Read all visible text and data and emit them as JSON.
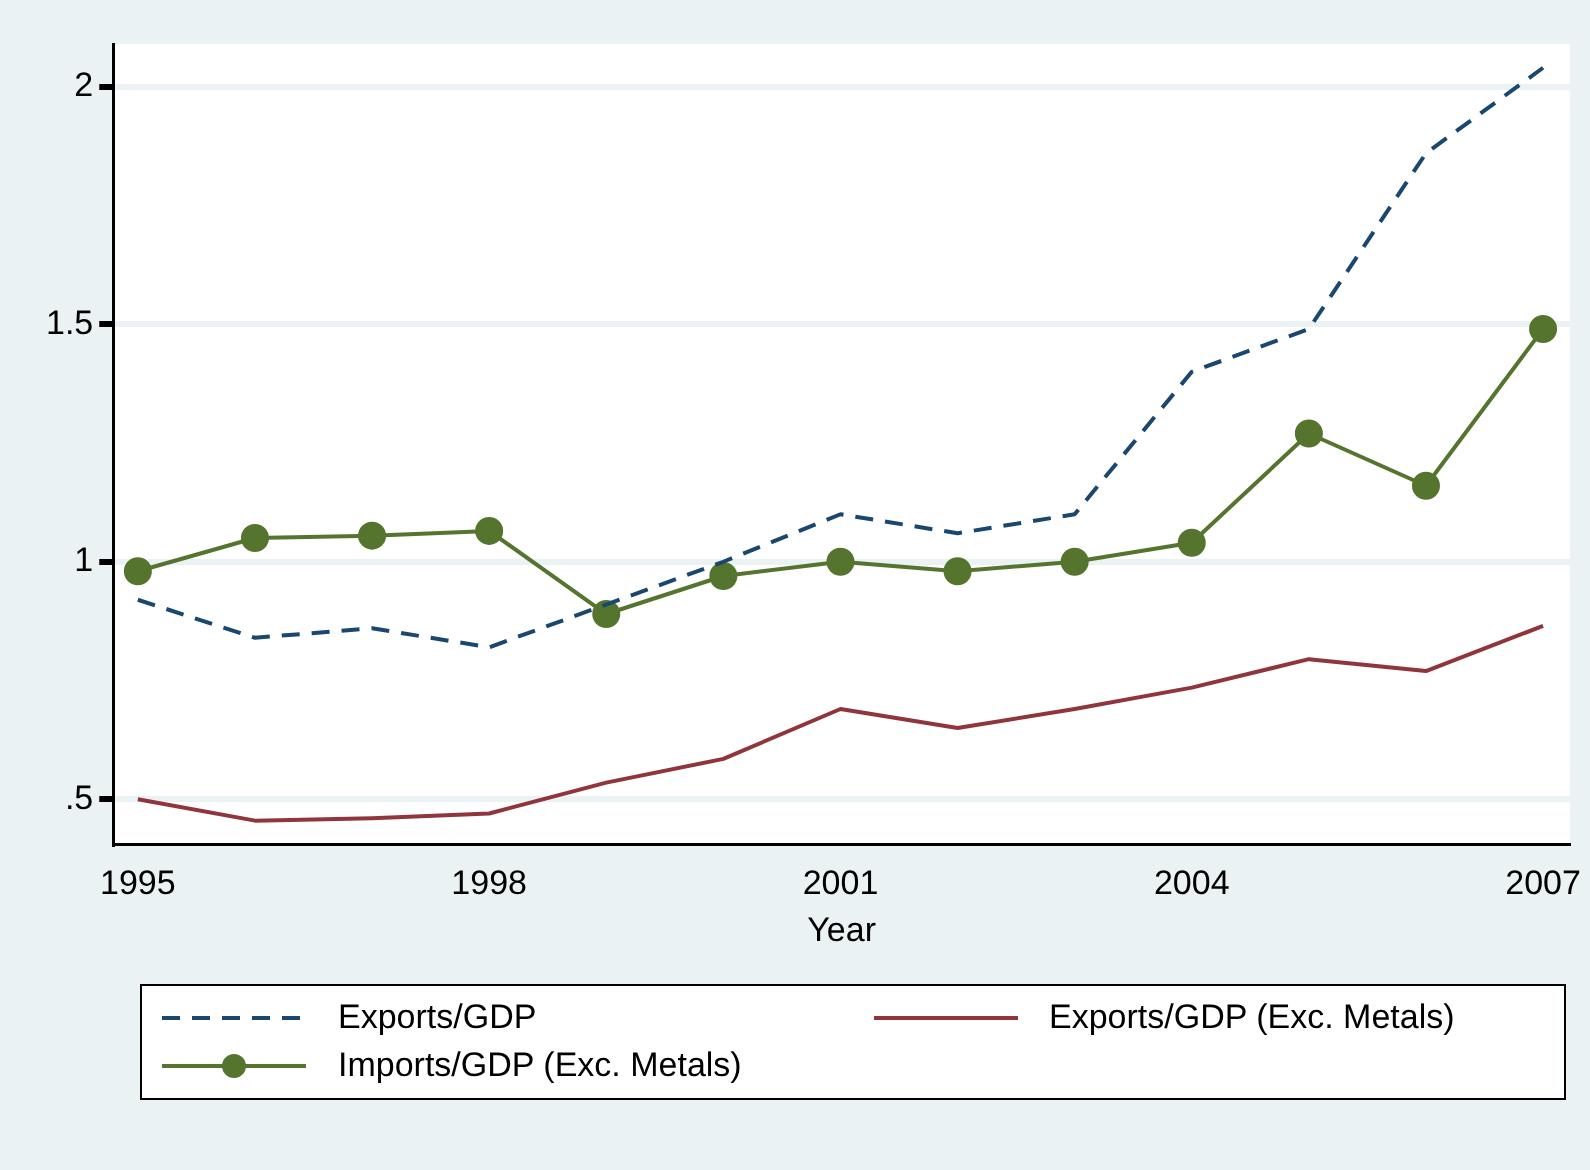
{
  "chart_data": {
    "type": "line",
    "xlabel": "Year",
    "x": [
      1995,
      1996,
      1997,
      1998,
      1999,
      2000,
      2001,
      2002,
      2003,
      2004,
      2005,
      2006,
      2007
    ],
    "xlim": [
      1994.79,
      2007.23
    ],
    "xticks": [
      1995,
      1998,
      2001,
      2004,
      2007
    ],
    "ylim": [
      0.405,
      2.09
    ],
    "yticks": [
      {
        "value": 0.5,
        "label": ".5"
      },
      1,
      1.5,
      2
    ],
    "grid": "y",
    "legend": "bottom",
    "series": [
      {
        "name": "Exports/GDP",
        "color": "#1a476f",
        "line_style": "dashed",
        "marker": "none",
        "values": [
          0.92,
          0.84,
          0.86,
          0.82,
          0.91,
          1.0,
          1.1,
          1.06,
          1.1,
          1.4,
          1.49,
          1.86,
          2.04
        ]
      },
      {
        "name": "Exports/GDP (Exc. Metals)",
        "color": "#90353b",
        "line_style": "solid",
        "marker": "none",
        "values": [
          0.5,
          0.455,
          0.46,
          0.47,
          0.535,
          0.585,
          0.69,
          0.65,
          0.69,
          0.735,
          0.795,
          0.77,
          0.865
        ]
      },
      {
        "name": "Imports/GDP (Exc. Metals)",
        "color": "#55752f",
        "line_style": "solid",
        "marker": "circle",
        "values": [
          0.98,
          1.05,
          1.055,
          1.065,
          0.89,
          0.97,
          1.0,
          0.98,
          1.0,
          1.04,
          1.27,
          1.16,
          1.49
        ]
      }
    ]
  }
}
